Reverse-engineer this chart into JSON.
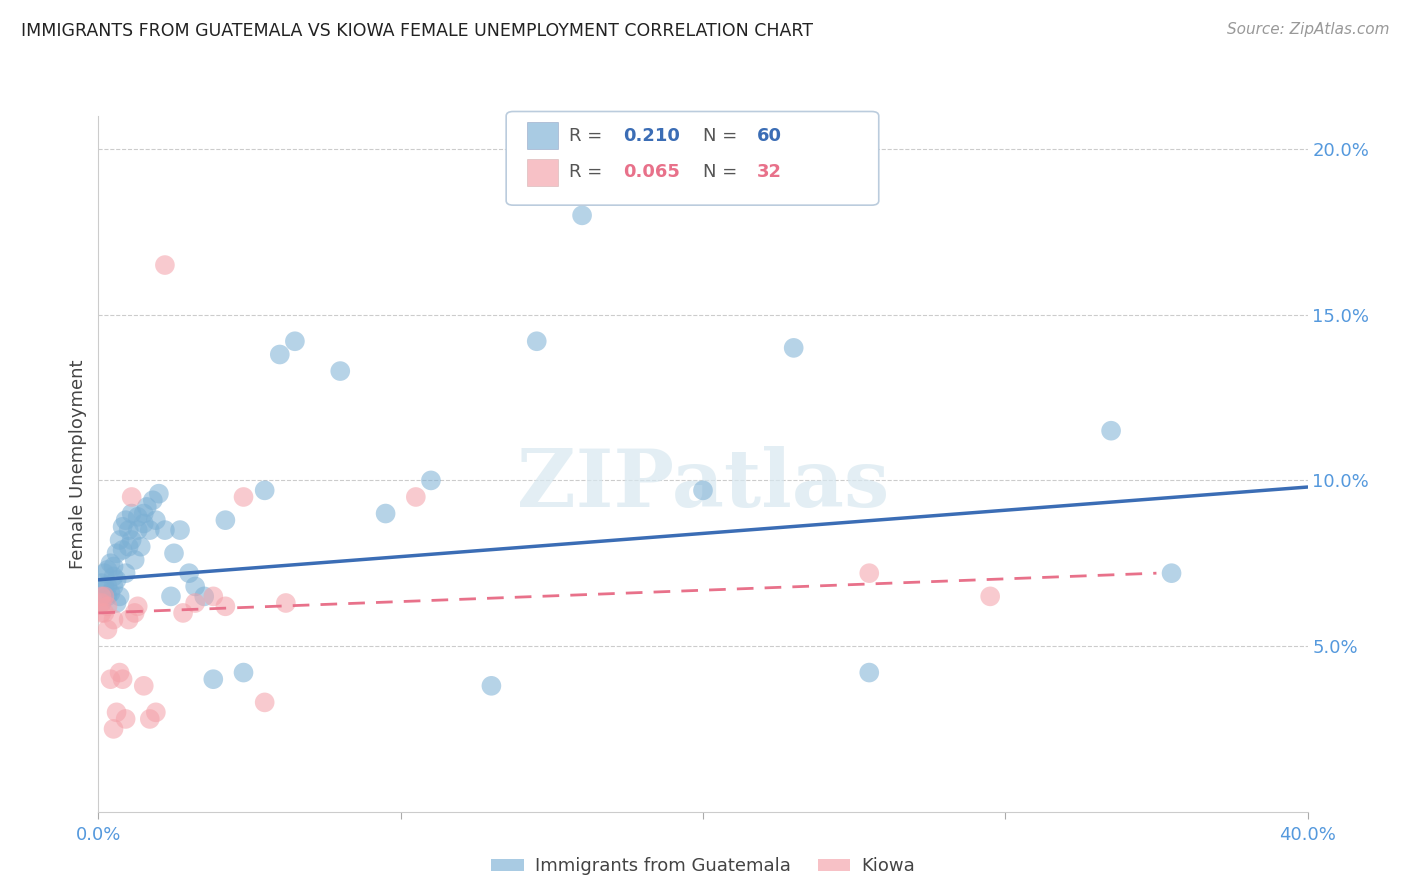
{
  "title": "IMMIGRANTS FROM GUATEMALA VS KIOWA FEMALE UNEMPLOYMENT CORRELATION CHART",
  "source": "Source: ZipAtlas.com",
  "ylabel": "Female Unemployment",
  "watermark": "ZIPatlas",
  "legend_blue_label": "Immigrants from Guatemala",
  "legend_pink_label": "Kiowa",
  "xlim": [
    0.0,
    0.4
  ],
  "ylim": [
    0.0,
    0.21
  ],
  "xticks": [
    0.0,
    0.1,
    0.2,
    0.3,
    0.4
  ],
  "yticks": [
    0.05,
    0.1,
    0.15,
    0.2
  ],
  "ytick_labels": [
    "5.0%",
    "10.0%",
    "15.0%",
    "20.0%"
  ],
  "xtick_labels": [
    "0.0%",
    "",
    "",
    "",
    "40.0%"
  ],
  "blue_color": "#7BAFD4",
  "pink_color": "#F4A0A8",
  "blue_line_color": "#3B6DB5",
  "pink_line_color": "#E8718A",
  "axis_tick_color": "#5599DD",
  "grid_color": "#CCCCCC",
  "background_color": "#FFFFFF",
  "blue_x": [
    0.001,
    0.001,
    0.002,
    0.002,
    0.003,
    0.003,
    0.003,
    0.004,
    0.004,
    0.005,
    0.005,
    0.005,
    0.006,
    0.006,
    0.006,
    0.007,
    0.007,
    0.008,
    0.008,
    0.009,
    0.009,
    0.01,
    0.01,
    0.011,
    0.011,
    0.012,
    0.013,
    0.013,
    0.014,
    0.015,
    0.015,
    0.016,
    0.017,
    0.018,
    0.019,
    0.02,
    0.022,
    0.024,
    0.025,
    0.027,
    0.03,
    0.032,
    0.035,
    0.038,
    0.042,
    0.048,
    0.055,
    0.06,
    0.065,
    0.08,
    0.095,
    0.11,
    0.13,
    0.145,
    0.16,
    0.2,
    0.23,
    0.255,
    0.335,
    0.355
  ],
  "blue_y": [
    0.063,
    0.069,
    0.068,
    0.072,
    0.065,
    0.068,
    0.073,
    0.075,
    0.066,
    0.068,
    0.071,
    0.074,
    0.063,
    0.07,
    0.078,
    0.065,
    0.082,
    0.079,
    0.086,
    0.072,
    0.088,
    0.08,
    0.085,
    0.082,
    0.09,
    0.076,
    0.089,
    0.085,
    0.08,
    0.087,
    0.09,
    0.092,
    0.085,
    0.094,
    0.088,
    0.096,
    0.085,
    0.065,
    0.078,
    0.085,
    0.072,
    0.068,
    0.065,
    0.04,
    0.088,
    0.042,
    0.097,
    0.138,
    0.142,
    0.133,
    0.09,
    0.1,
    0.038,
    0.142,
    0.18,
    0.097,
    0.14,
    0.042,
    0.115,
    0.072
  ],
  "pink_x": [
    0.001,
    0.001,
    0.001,
    0.002,
    0.002,
    0.003,
    0.003,
    0.004,
    0.005,
    0.005,
    0.006,
    0.007,
    0.008,
    0.009,
    0.01,
    0.011,
    0.012,
    0.013,
    0.015,
    0.017,
    0.019,
    0.022,
    0.028,
    0.032,
    0.038,
    0.042,
    0.048,
    0.055,
    0.062,
    0.105,
    0.255,
    0.295
  ],
  "pink_y": [
    0.06,
    0.063,
    0.065,
    0.06,
    0.065,
    0.055,
    0.062,
    0.04,
    0.025,
    0.058,
    0.03,
    0.042,
    0.04,
    0.028,
    0.058,
    0.095,
    0.06,
    0.062,
    0.038,
    0.028,
    0.03,
    0.165,
    0.06,
    0.063,
    0.065,
    0.062,
    0.095,
    0.033,
    0.063,
    0.095,
    0.072,
    0.065
  ],
  "blue_trend_x": [
    0.0,
    0.4
  ],
  "blue_trend_y": [
    0.07,
    0.098
  ],
  "pink_trend_x": [
    0.0,
    0.35
  ],
  "pink_trend_y": [
    0.06,
    0.072
  ]
}
